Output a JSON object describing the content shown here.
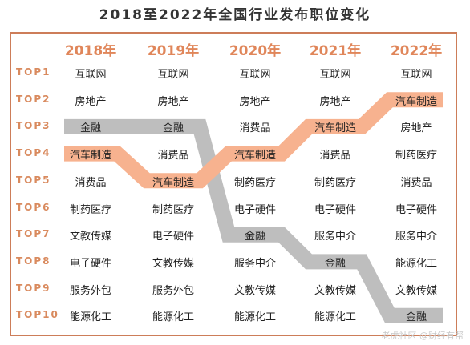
{
  "chart_data": {
    "type": "table",
    "title": "2018至2022年全国行业发布职位变化",
    "years": [
      "2018年",
      "2019年",
      "2020年",
      "2021年",
      "2022年"
    ],
    "ranks": [
      "TOP1",
      "TOP2",
      "TOP3",
      "TOP4",
      "TOP5",
      "TOP6",
      "TOP7",
      "TOP8",
      "TOP9",
      "TOP10"
    ],
    "columns": [
      [
        "互联网",
        "房地产",
        "金融",
        "汽车制造",
        "消费品",
        "制药医疗",
        "文教传媒",
        "电子硬件",
        "服务外包",
        "能源化工"
      ],
      [
        "互联网",
        "房地产",
        "金融",
        "消费品",
        "汽车制造",
        "制药医疗",
        "电子硬件",
        "文教传媒",
        "服务外包",
        "能源化工"
      ],
      [
        "互联网",
        "房地产",
        "消费品",
        "汽车制造",
        "制药医疗",
        "电子硬件",
        "金融",
        "服务中介",
        "文教传媒",
        "能源化工"
      ],
      [
        "互联网",
        "房地产",
        "汽车制造",
        "消费品",
        "制药医疗",
        "电子硬件",
        "服务中介",
        "金融",
        "文教传媒",
        "能源化工"
      ],
      [
        "互联网",
        "汽车制造",
        "房地产",
        "制药医疗",
        "消费品",
        "电子硬件",
        "服务中介",
        "能源化工",
        "文教传媒",
        "金融"
      ]
    ],
    "highlight": [
      {
        "name": "金融",
        "ranks": [
          3,
          3,
          7,
          8,
          10
        ],
        "color": "#bebebe"
      },
      {
        "name": "汽车制造",
        "ranks": [
          4,
          5,
          4,
          3,
          2
        ],
        "color": "#f7b28f"
      }
    ]
  },
  "watermark": "老虎社区 @财经有帮"
}
